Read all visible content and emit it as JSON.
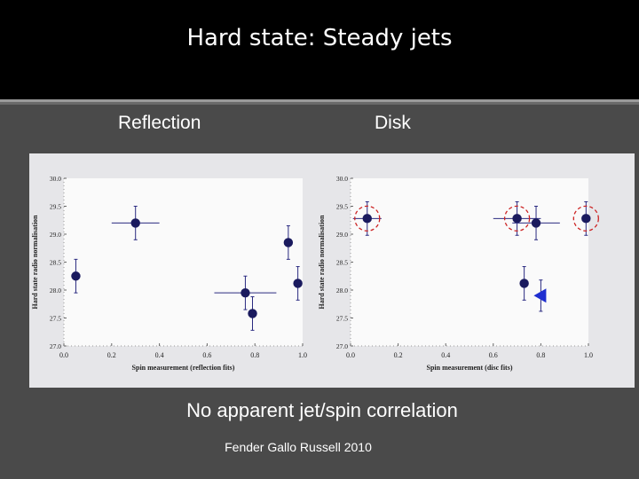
{
  "slide": {
    "title": "Hard state: Steady jets",
    "label_left": "Reflection",
    "label_right": "Disk",
    "caption": "No apparent jet/spin correlation",
    "credit": "Fender Gallo Russell 2010"
  },
  "colors": {
    "point": "#1a1a5e",
    "circle": "#cc2222",
    "triangle": "#1f2fd0",
    "errorbar": "#2a2a80"
  },
  "chart_data": [
    {
      "type": "scatter",
      "xlabel": "Spin measurement (reflection fits)",
      "ylabel": "Hard state radio normalisation",
      "xlim": [
        0.0,
        1.0
      ],
      "ylim": [
        27.0,
        30.0
      ],
      "xticks": [
        "0.0",
        "0.2",
        "0.4",
        "0.6",
        "0.8",
        "1.0"
      ],
      "yticks": [
        "27.0",
        "27.5",
        "28.0",
        "28.5",
        "29.0",
        "29.5",
        "30.0"
      ],
      "points": [
        {
          "x": 0.05,
          "y": 28.25,
          "xerr": 0.0,
          "yerr": 0.3
        },
        {
          "x": 0.3,
          "y": 29.2,
          "xerr": 0.1,
          "yerr": 0.3
        },
        {
          "x": 0.76,
          "y": 27.95,
          "xerr": 0.13,
          "yerr": 0.3
        },
        {
          "x": 0.79,
          "y": 27.58,
          "xerr": 0.0,
          "yerr": 0.3
        },
        {
          "x": 0.94,
          "y": 28.85,
          "xerr": 0.0,
          "yerr": 0.3
        },
        {
          "x": 0.98,
          "y": 28.12,
          "xerr": 0.0,
          "yerr": 0.3
        }
      ]
    },
    {
      "type": "scatter",
      "xlabel": "Spin measurement (disc fits)",
      "ylabel": "Hard state radio normalisation",
      "xlim": [
        0.0,
        1.0
      ],
      "ylim": [
        27.0,
        30.0
      ],
      "xticks": [
        "0.0",
        "0.2",
        "0.4",
        "0.6",
        "0.8",
        "1.0"
      ],
      "yticks": [
        "27.0",
        "27.5",
        "28.0",
        "28.5",
        "29.0",
        "29.5",
        "30.0"
      ],
      "points": [
        {
          "x": 0.07,
          "y": 29.28,
          "xerr": 0.06,
          "yerr": 0.3,
          "circled": true
        },
        {
          "x": 0.7,
          "y": 29.28,
          "xerr": 0.1,
          "yerr": 0.3,
          "circled": true
        },
        {
          "x": 0.78,
          "y": 29.2,
          "xerr": 0.1,
          "yerr": 0.3
        },
        {
          "x": 0.99,
          "y": 29.28,
          "xerr": 0.0,
          "yerr": 0.3,
          "circled": true
        },
        {
          "x": 0.73,
          "y": 28.12,
          "xerr": 0.0,
          "yerr": 0.3
        },
        {
          "x": 0.8,
          "y": 27.9,
          "xerr": 0.0,
          "yerr": 0.28,
          "marker": "triangle"
        }
      ]
    }
  ]
}
